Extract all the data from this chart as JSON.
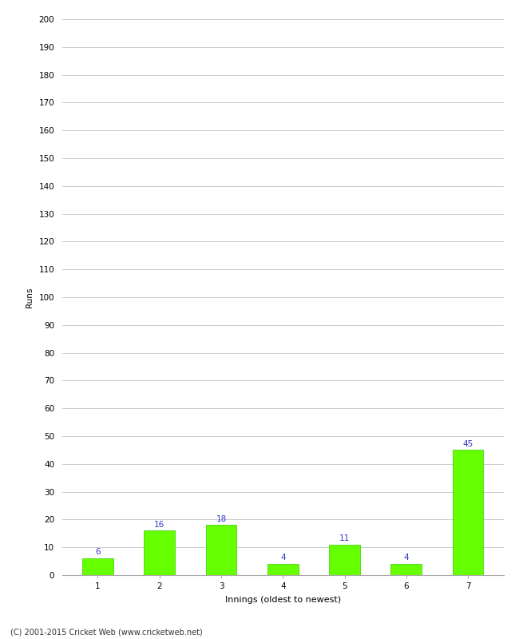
{
  "categories": [
    "1",
    "2",
    "3",
    "4",
    "5",
    "6",
    "7"
  ],
  "values": [
    6,
    16,
    18,
    4,
    11,
    4,
    45
  ],
  "bar_color": "#66ff00",
  "bar_edge_color": "#33cc00",
  "label_color": "#3333cc",
  "xlabel": "Innings (oldest to newest)",
  "ylabel": "Runs",
  "ylim": [
    0,
    200
  ],
  "ytick_step": 10,
  "background_color": "#ffffff",
  "grid_color": "#cccccc",
  "footer_text": "(C) 2001-2015 Cricket Web (www.cricketweb.net)",
  "label_fontsize": 7.5,
  "axis_fontsize": 7.5,
  "xlabel_fontsize": 8,
  "ylabel_fontsize": 7.5,
  "bar_width": 0.5
}
